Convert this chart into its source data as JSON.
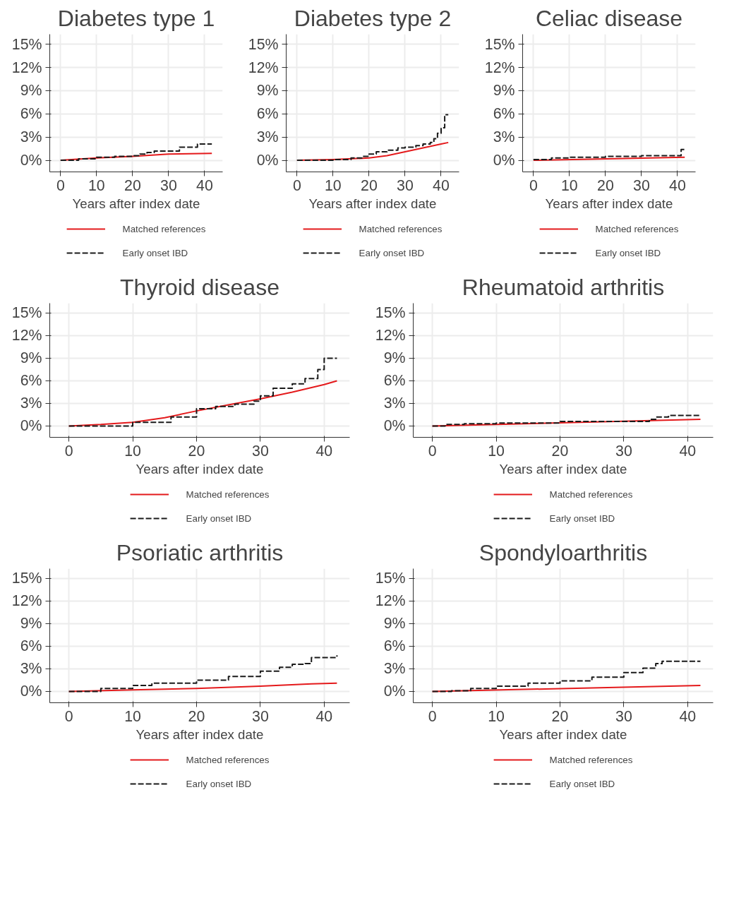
{
  "chart_data": [
    {
      "type": "line",
      "title": "Diabetes type 1",
      "xlabel": "Years after index date",
      "xlim": [
        -3,
        45
      ],
      "xticks": [
        0,
        10,
        20,
        30,
        40
      ],
      "ylim": [
        -1.5,
        16.3
      ],
      "yticks": [
        {
          "value": 0,
          "label": "0%"
        },
        {
          "value": 3,
          "label": "3%"
        },
        {
          "value": 6,
          "label": "6%"
        },
        {
          "value": 9,
          "label": "9%"
        },
        {
          "value": 12,
          "label": "12%"
        },
        {
          "value": 15,
          "label": "15%"
        }
      ],
      "grid": true,
      "legend": "bottom",
      "series": [
        {
          "name": "Matched references",
          "color": "#e41a1c",
          "line_style": "solid",
          "x": [
            0,
            10,
            20,
            30,
            42
          ],
          "values": [
            0,
            0.3,
            0.5,
            0.8,
            0.9
          ]
        },
        {
          "name": "Early onset IBD",
          "color": "#1a1a1a",
          "type": "step",
          "line_style": "dashed",
          "x": [
            0,
            5,
            10,
            15,
            20,
            22,
            24,
            26,
            33,
            38,
            42
          ],
          "values": [
            0,
            0.2,
            0.4,
            0.5,
            0.6,
            0.8,
            1.0,
            1.2,
            1.7,
            2.1,
            2.1
          ]
        }
      ]
    },
    {
      "type": "line",
      "title": "Diabetes type 2",
      "xlabel": "Years after index date",
      "xlim": [
        -3,
        45
      ],
      "xticks": [
        0,
        10,
        20,
        30,
        40
      ],
      "ylim": [
        -1.5,
        16.3
      ],
      "yticks": [
        {
          "value": 0,
          "label": "0%"
        },
        {
          "value": 3,
          "label": "3%"
        },
        {
          "value": 6,
          "label": "6%"
        },
        {
          "value": 9,
          "label": "9%"
        },
        {
          "value": 12,
          "label": "12%"
        },
        {
          "value": 15,
          "label": "15%"
        }
      ],
      "grid": true,
      "legend": "bottom",
      "series": [
        {
          "name": "Matched references",
          "color": "#e41a1c",
          "line_style": "solid",
          "x": [
            0,
            10,
            20,
            25,
            30,
            35,
            40,
            42
          ],
          "values": [
            0,
            0.1,
            0.3,
            0.6,
            1.1,
            1.6,
            2.1,
            2.3
          ]
        },
        {
          "name": "Early onset IBD",
          "color": "#1a1a1a",
          "type": "step",
          "line_style": "dashed",
          "x": [
            0,
            10,
            15,
            18,
            20,
            22,
            25,
            28,
            30,
            33,
            35,
            37,
            38,
            39,
            40,
            41,
            42
          ],
          "values": [
            0,
            0.1,
            0.3,
            0.5,
            0.8,
            1.1,
            1.3,
            1.6,
            1.7,
            1.9,
            2.1,
            2.3,
            2.8,
            3.5,
            4.2,
            5.9,
            5.9
          ]
        }
      ]
    },
    {
      "type": "line",
      "title": "Celiac disease",
      "xlabel": "Years after index date",
      "xlim": [
        -3,
        45
      ],
      "xticks": [
        0,
        10,
        20,
        30,
        40
      ],
      "ylim": [
        -1.5,
        16.3
      ],
      "yticks": [
        {
          "value": 0,
          "label": "0%"
        },
        {
          "value": 3,
          "label": "3%"
        },
        {
          "value": 6,
          "label": "6%"
        },
        {
          "value": 9,
          "label": "9%"
        },
        {
          "value": 12,
          "label": "12%"
        },
        {
          "value": 15,
          "label": "15%"
        }
      ],
      "grid": true,
      "legend": "bottom",
      "series": [
        {
          "name": "Matched references",
          "color": "#e41a1c",
          "line_style": "solid",
          "x": [
            0,
            42
          ],
          "values": [
            0,
            0.4
          ]
        },
        {
          "name": "Early onset IBD",
          "color": "#1a1a1a",
          "type": "step",
          "line_style": "dashed",
          "x": [
            0,
            5,
            10,
            20,
            30,
            41,
            42
          ],
          "values": [
            0.1,
            0.3,
            0.4,
            0.5,
            0.6,
            1.4,
            1.4
          ]
        }
      ]
    },
    {
      "type": "line",
      "title": "Thyroid disease",
      "xlabel": "Years after index date",
      "xlim": [
        -3,
        44
      ],
      "xticks": [
        0,
        10,
        20,
        30,
        40
      ],
      "ylim": [
        -1.5,
        16.3
      ],
      "yticks": [
        {
          "value": 0,
          "label": "0%"
        },
        {
          "value": 3,
          "label": "3%"
        },
        {
          "value": 6,
          "label": "6%"
        },
        {
          "value": 9,
          "label": "9%"
        },
        {
          "value": 12,
          "label": "12%"
        },
        {
          "value": 15,
          "label": "15%"
        }
      ],
      "grid": true,
      "legend": "bottom",
      "series": [
        {
          "name": "Matched references",
          "color": "#e41a1c",
          "line_style": "solid",
          "x": [
            0,
            5,
            10,
            15,
            20,
            25,
            30,
            35,
            40,
            42
          ],
          "values": [
            0,
            0.2,
            0.5,
            1.1,
            2.0,
            2.8,
            3.6,
            4.5,
            5.5,
            6.0
          ]
        },
        {
          "name": "Early onset IBD",
          "color": "#1a1a1a",
          "type": "step",
          "line_style": "dashed",
          "x": [
            0,
            10,
            16,
            20,
            23,
            26,
            29,
            30,
            32,
            35,
            37,
            39,
            40,
            42
          ],
          "values": [
            0,
            0.5,
            1.2,
            2.3,
            2.6,
            2.9,
            3.3,
            4.0,
            5.0,
            5.6,
            6.3,
            7.5,
            9.0,
            9.0
          ]
        }
      ]
    },
    {
      "type": "line",
      "title": "Rheumatoid arthritis",
      "xlabel": "Years after index date",
      "xlim": [
        -3,
        44
      ],
      "xticks": [
        0,
        10,
        20,
        30,
        40
      ],
      "ylim": [
        -1.5,
        16.3
      ],
      "yticks": [
        {
          "value": 0,
          "label": "0%"
        },
        {
          "value": 3,
          "label": "3%"
        },
        {
          "value": 6,
          "label": "6%"
        },
        {
          "value": 9,
          "label": "9%"
        },
        {
          "value": 12,
          "label": "12%"
        },
        {
          "value": 15,
          "label": "15%"
        }
      ],
      "grid": true,
      "legend": "bottom",
      "series": [
        {
          "name": "Matched references",
          "color": "#e41a1c",
          "line_style": "solid",
          "x": [
            0,
            42
          ],
          "values": [
            0,
            0.9
          ]
        },
        {
          "name": "Early onset IBD",
          "color": "#1a1a1a",
          "type": "step",
          "line_style": "dashed",
          "x": [
            0,
            2,
            5,
            10,
            20,
            30,
            34,
            35,
            37,
            42
          ],
          "values": [
            0,
            0.2,
            0.3,
            0.4,
            0.6,
            0.6,
            0.9,
            1.2,
            1.4,
            1.4
          ]
        }
      ]
    },
    {
      "type": "line",
      "title": "Psoriatic arthritis",
      "xlabel": "Years after index date",
      "xlim": [
        -3,
        44
      ],
      "xticks": [
        0,
        10,
        20,
        30,
        40
      ],
      "ylim": [
        -1.5,
        16.3
      ],
      "yticks": [
        {
          "value": 0,
          "label": "0%"
        },
        {
          "value": 3,
          "label": "3%"
        },
        {
          "value": 6,
          "label": "6%"
        },
        {
          "value": 9,
          "label": "9%"
        },
        {
          "value": 12,
          "label": "12%"
        },
        {
          "value": 15,
          "label": "15%"
        }
      ],
      "grid": true,
      "legend": "bottom",
      "series": [
        {
          "name": "Matched references",
          "color": "#e41a1c",
          "line_style": "solid",
          "x": [
            0,
            10,
            20,
            30,
            38,
            42
          ],
          "values": [
            0,
            0.2,
            0.4,
            0.7,
            1.0,
            1.1
          ]
        },
        {
          "name": "Early onset IBD",
          "color": "#1a1a1a",
          "type": "step",
          "line_style": "dashed",
          "x": [
            0,
            5,
            10,
            13,
            20,
            25,
            30,
            33,
            35,
            37,
            38,
            42
          ],
          "values": [
            0,
            0.4,
            0.8,
            1.1,
            1.5,
            2.0,
            2.7,
            3.2,
            3.6,
            3.7,
            4.5,
            4.8
          ]
        }
      ]
    },
    {
      "type": "line",
      "title": "Spondyloarthritis",
      "xlabel": "Years after index date",
      "xlim": [
        -3,
        44
      ],
      "xticks": [
        0,
        10,
        20,
        30,
        40
      ],
      "ylim": [
        -1.5,
        16.3
      ],
      "yticks": [
        {
          "value": 0,
          "label": "0%"
        },
        {
          "value": 3,
          "label": "3%"
        },
        {
          "value": 6,
          "label": "6%"
        },
        {
          "value": 9,
          "label": "9%"
        },
        {
          "value": 12,
          "label": "12%"
        },
        {
          "value": 15,
          "label": "15%"
        }
      ],
      "grid": true,
      "legend": "bottom",
      "series": [
        {
          "name": "Matched references",
          "color": "#e41a1c",
          "line_style": "solid",
          "x": [
            0,
            42
          ],
          "values": [
            0,
            0.8
          ]
        },
        {
          "name": "Early onset IBD",
          "color": "#1a1a1a",
          "type": "step",
          "line_style": "dashed",
          "x": [
            0,
            3,
            6,
            10,
            15,
            20,
            25,
            30,
            33,
            35,
            36,
            42
          ],
          "values": [
            0,
            0.1,
            0.4,
            0.7,
            1.1,
            1.4,
            1.9,
            2.5,
            3.1,
            3.7,
            4.0,
            4.0
          ]
        }
      ]
    }
  ]
}
